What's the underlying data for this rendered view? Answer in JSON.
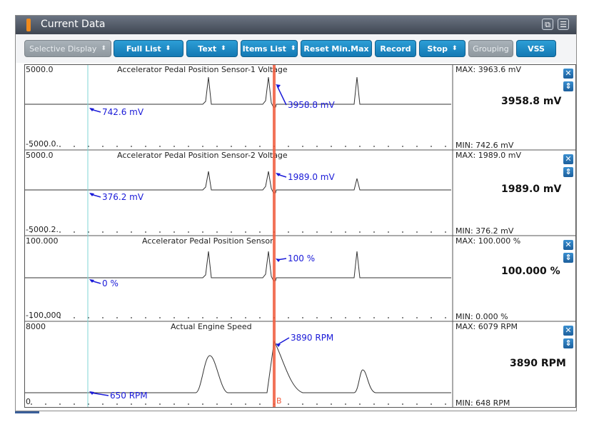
{
  "window": {
    "title": "Current Data"
  },
  "toolbar": {
    "buttons": [
      {
        "label": "Selective Display",
        "arrow": "⬍",
        "disabled": true
      },
      {
        "label": "Full List",
        "arrow": "⬍",
        "disabled": false
      },
      {
        "label": "Text",
        "arrow": "⬍",
        "disabled": false
      },
      {
        "label": "Items List",
        "arrow": "⬍",
        "disabled": false
      },
      {
        "label": "Reset Min.Max",
        "arrow": "",
        "disabled": false
      },
      {
        "label": "Record",
        "arrow": "",
        "disabled": false
      },
      {
        "label": "Stop",
        "arrow": "⬍",
        "disabled": false
      },
      {
        "label": "Grouping",
        "arrow": "",
        "disabled": true
      },
      {
        "label": "VSS",
        "arrow": "",
        "disabled": false
      }
    ]
  },
  "colors": {
    "cursor_a": "#7fd6d6",
    "cursor_b": "#f05a3c",
    "annotation": "#1a1ad8",
    "button": "#1a86c4"
  },
  "graphs": [
    {
      "name": "Accelerator Pedal Position Sensor-1 Voltage",
      "ymax_label": "5000.0",
      "ymin_label": "-5000.0.",
      "max_text": "MAX: 3963.6 mV",
      "min_text": "MIN: 742.6 mV",
      "current": "3958.8 mV",
      "cursor_a_label": "742.6 mV",
      "cursor_b_label": "3958.8 mV"
    },
    {
      "name": "Accelerator Pedal Position Sensor-2 Voltage",
      "ymax_label": "5000.0",
      "ymin_label": "-5000.2.",
      "max_text": "MAX: 1989.0 mV",
      "min_text": "MIN: 376.2 mV",
      "current": "1989.0 mV",
      "cursor_a_label": "376.2 mV",
      "cursor_b_label": "1989.0 mV"
    },
    {
      "name": "Accelerator Pedal Position Sensor",
      "ymax_label": "100.000",
      "ymin_label": "-100.000",
      "max_text": "MAX: 100.000 %",
      "min_text": "MIN: 0.000 %",
      "current": "100.000 %",
      "cursor_a_label": "0 %",
      "cursor_b_label": "100 %"
    },
    {
      "name": "Actual Engine Speed",
      "ymax_label": "8000",
      "ymin_label": "0",
      "max_text": "MAX:   6079 RPM",
      "min_text": "MIN:   648 RPM",
      "current": "3890 RPM",
      "cursor_a_label": "650 RPM",
      "cursor_b_label": "3890 RPM"
    }
  ],
  "cursor_b_tag": "B",
  "icons": {
    "panel_close": "close-icon",
    "panel_move": "move-updown-icon",
    "window_restore": "restore-icon",
    "window_menu": "menu-icon"
  }
}
